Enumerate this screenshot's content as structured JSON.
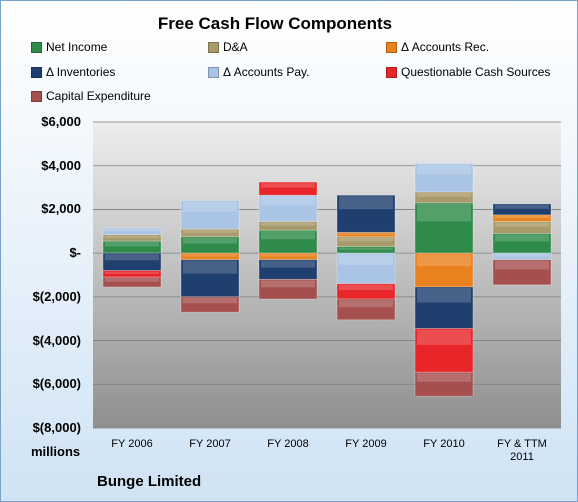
{
  "chart_data": {
    "type": "bar",
    "stacked": true,
    "title": "Free Cash Flow Components",
    "units_label": "millions",
    "company": "Bunge Limited",
    "categories": [
      "FY 2006",
      "FY 2007",
      "FY 2008",
      "FY 2009",
      "FY 2010",
      "FY & TTM 2011"
    ],
    "ylim": [
      -8000,
      6000
    ],
    "yticks": [
      6000,
      4000,
      2000,
      0,
      -2000,
      -4000,
      -6000,
      -8000
    ],
    "ytick_labels": [
      "$6,000",
      "$4,000",
      "$2,000",
      "$-",
      "$(2,000)",
      "$(4,000)",
      "$(6,000)",
      "$(8,000)"
    ],
    "grid": true,
    "legend_position": "top",
    "series": [
      {
        "name": "Net Income",
        "color": "#2e8b4a",
        "values": [
          550,
          750,
          1050,
          300,
          2300,
          900
        ]
      },
      {
        "name": "D&A",
        "color": "#a89a6a",
        "values": [
          300,
          350,
          400,
          450,
          500,
          550
        ]
      },
      {
        "name": "Δ Accounts Rec.",
        "color": "#e8821e",
        "values": [
          0,
          -300,
          -300,
          200,
          -1550,
          300
        ]
      },
      {
        "name": "Δ Inventories",
        "color": "#1f3f6e",
        "values": [
          -800,
          -1700,
          -900,
          1700,
          -1900,
          500
        ]
      },
      {
        "name": "Δ Accounts Pay.",
        "color": "#a9c4e4",
        "values": [
          300,
          1300,
          1200,
          -1400,
          1300,
          -300
        ]
      },
      {
        "name": "Questionable Cash Sources",
        "color": "#e8262a",
        "values": [
          -300,
          0,
          600,
          -700,
          -2000,
          0
        ]
      },
      {
        "name": "Capital Expenditure",
        "color": "#a5504f",
        "values": [
          -450,
          -700,
          -900,
          -950,
          -1100,
          -1150
        ]
      }
    ]
  }
}
